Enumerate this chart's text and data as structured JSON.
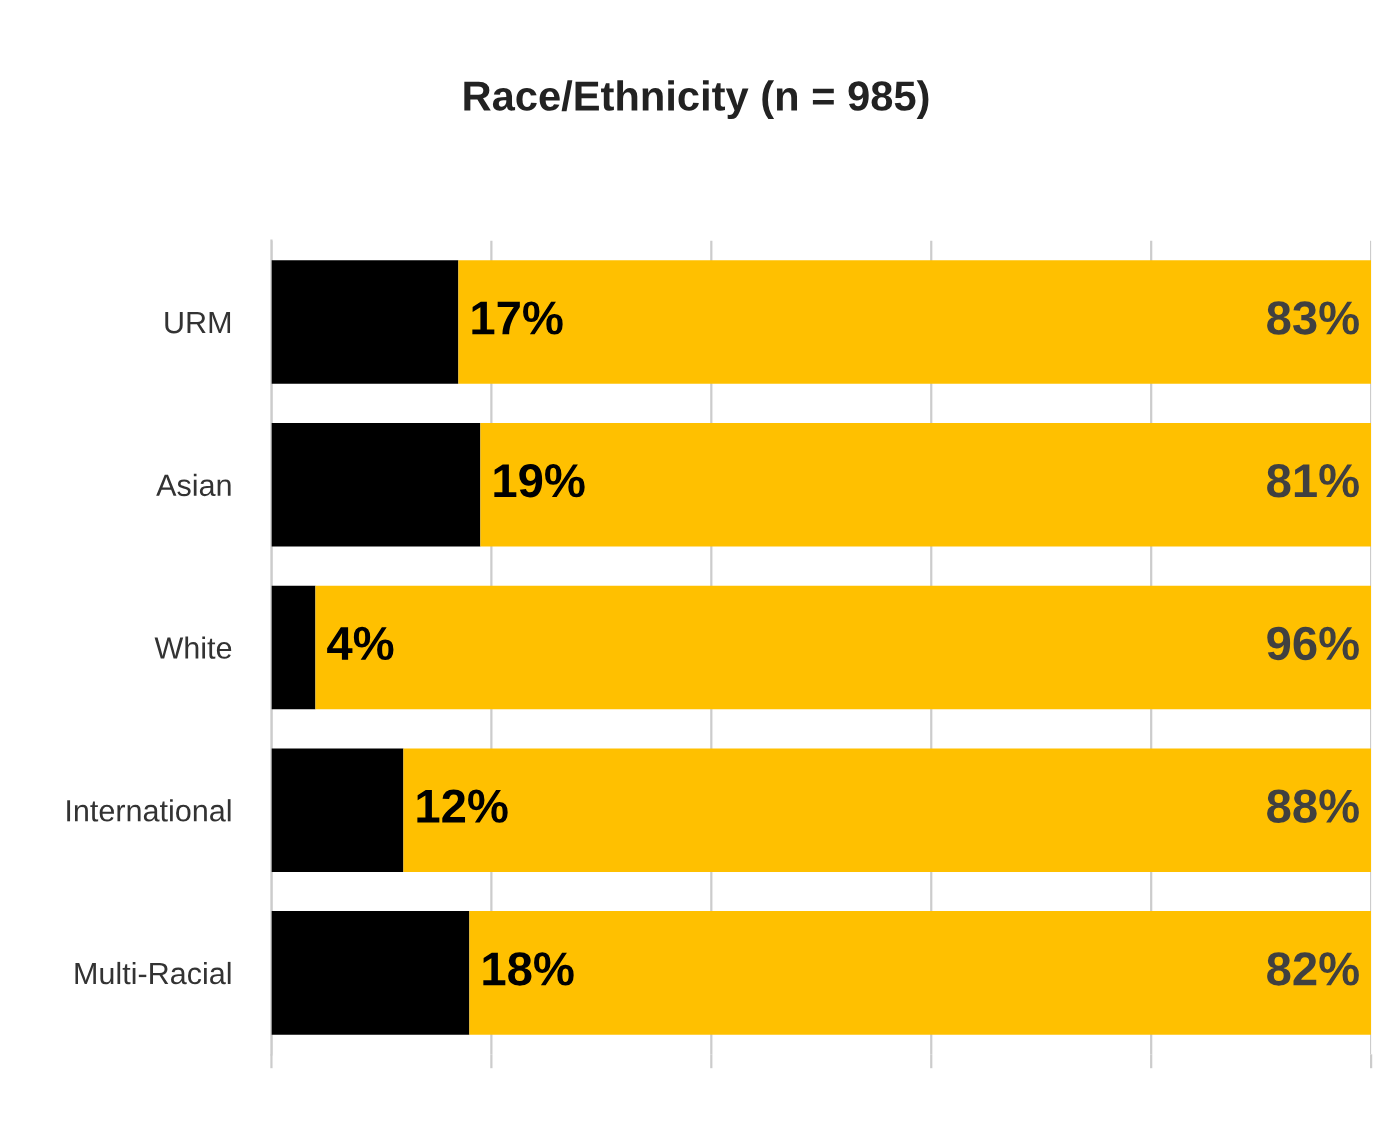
{
  "chart_data": {
    "type": "bar",
    "orientation": "horizontal",
    "stacked": true,
    "title": "Race/Ethnicity (n = 985)",
    "categories": [
      "URM",
      "Asian",
      "White",
      "International",
      "Multi-Racial"
    ],
    "series": [
      {
        "color": "#000000",
        "values": [
          17,
          19,
          4,
          12,
          18
        ],
        "value_labels": [
          "17%",
          "19%",
          "4%",
          "12%",
          "18%"
        ]
      },
      {
        "color": "#ffc000",
        "values": [
          83,
          81,
          96,
          88,
          82
        ],
        "value_labels": [
          "83%",
          "81%",
          "96%",
          "88%",
          "82%"
        ]
      }
    ],
    "tick_labels": "y",
    "grid": "x",
    "legend": false
  }
}
